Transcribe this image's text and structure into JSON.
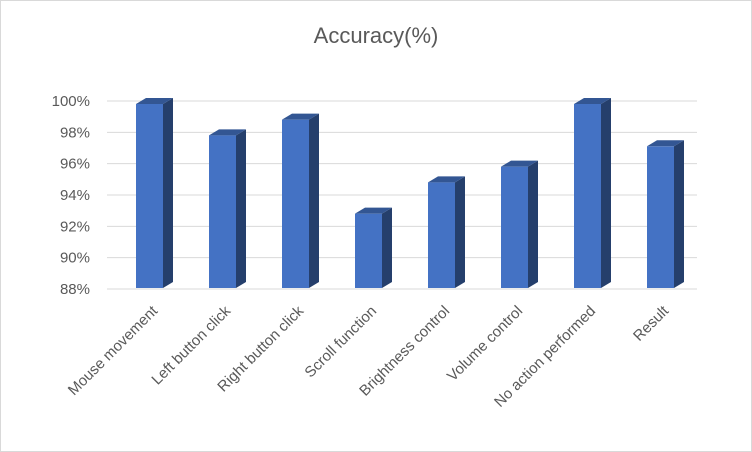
{
  "chart_data": {
    "type": "bar3d",
    "title": "Accuracy(%)",
    "categories": [
      "Mouse movement",
      "Left button click",
      "Right button click",
      "Scroll function",
      "Brightness control",
      "Volume control",
      "No action performed",
      "Result"
    ],
    "values": [
      100,
      98,
      99,
      93,
      95,
      96,
      100,
      97.3
    ],
    "color": "#4472c4",
    "ylim": [
      88,
      100
    ],
    "yticks": [
      {
        "value": 88,
        "label": "88%"
      },
      {
        "value": 90,
        "label": "90%"
      },
      {
        "value": 92,
        "label": "92%"
      },
      {
        "value": 94,
        "label": "94%"
      },
      {
        "value": 96,
        "label": "96%"
      },
      {
        "value": 98,
        "label": "98%"
      },
      {
        "value": 100,
        "label": "100%"
      }
    ],
    "grid": true
  }
}
